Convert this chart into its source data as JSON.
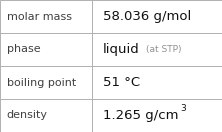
{
  "rows": [
    {
      "label": "molar mass",
      "value": "58.036 g/mol",
      "value_suffix": null,
      "superscript": null
    },
    {
      "label": "phase",
      "value": "liquid",
      "value_suffix": "(at STP)",
      "superscript": null
    },
    {
      "label": "boiling point",
      "value": "51 °C",
      "value_suffix": null,
      "superscript": null
    },
    {
      "label": "density",
      "value": "1.265 g/cm",
      "value_suffix": null,
      "superscript": "3"
    }
  ],
  "col_split": 0.415,
  "bg_color": "#ffffff",
  "border_color": "#b0b0b0",
  "label_color": "#404040",
  "value_color": "#111111",
  "suffix_color": "#909090",
  "label_fontsize": 8.0,
  "value_fontsize": 9.5,
  "suffix_fontsize": 6.5,
  "super_fontsize": 6.5,
  "figwidth": 2.22,
  "figheight": 1.32,
  "dpi": 100
}
